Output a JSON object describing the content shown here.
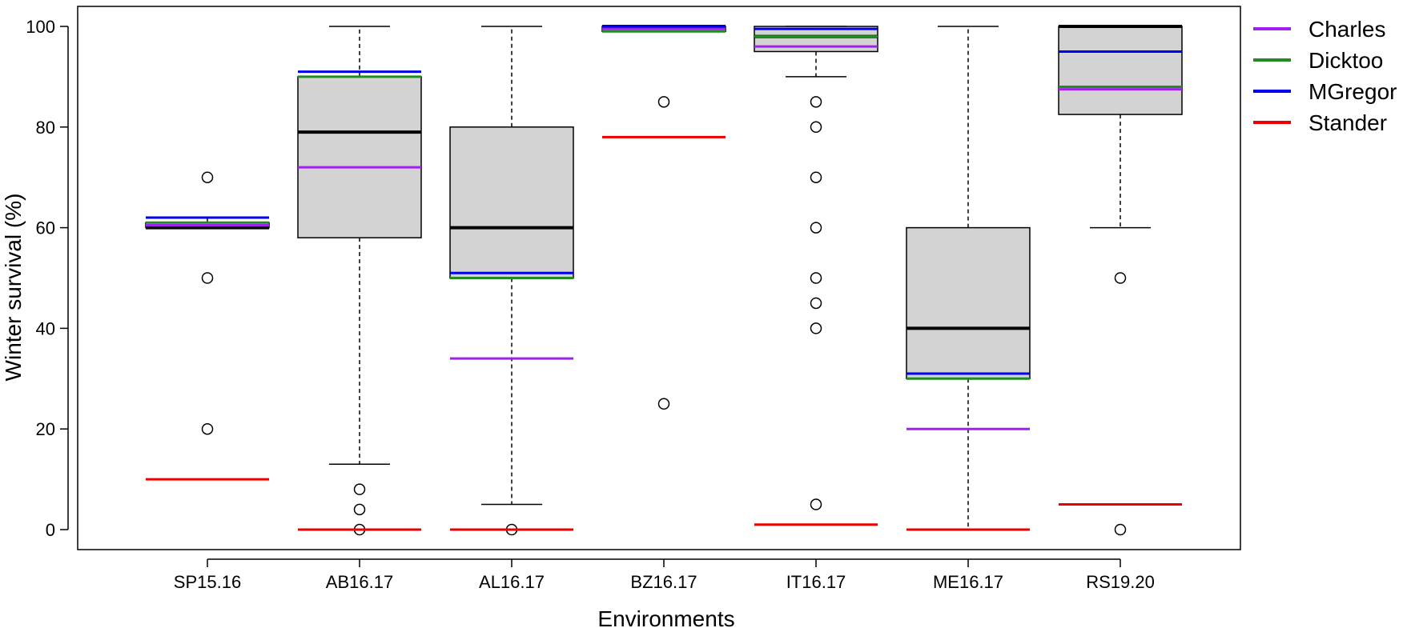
{
  "chart_data": {
    "type": "boxplot",
    "title": "",
    "xlabel": "Environments",
    "ylabel": "Winter survival (%)",
    "ylim": [
      -4,
      104
    ],
    "yticks": [
      0,
      20,
      40,
      60,
      80,
      100
    ],
    "grid": false,
    "legend_position": "top-right (outside plot)",
    "colors": {
      "box_fill": "#d3d3d3",
      "box_stroke": "#000000",
      "median": "#000000",
      "Charles": "#a020f0",
      "Dicktoo": "#228b22",
      "MGregor": "#0000ee",
      "Stander": "#ee0000"
    },
    "categories": [
      "SP15.16",
      "AB16.17",
      "AL16.17",
      "BZ16.17",
      "IT16.17",
      "ME16.17",
      "RS19.20"
    ],
    "boxes": [
      {
        "category": "SP15.16",
        "whisker_low": 60,
        "q1": 60,
        "median": 60,
        "q3": 61,
        "whisker_high": 62,
        "outliers": [
          70,
          50,
          20
        ]
      },
      {
        "category": "AB16.17",
        "whisker_low": 13,
        "q1": 58,
        "median": 79,
        "q3": 90,
        "whisker_high": 100,
        "outliers": [
          8,
          4,
          0
        ]
      },
      {
        "category": "AL16.17",
        "whisker_low": 5,
        "q1": 50,
        "median": 60,
        "q3": 80,
        "whisker_high": 100,
        "outliers": [
          0
        ]
      },
      {
        "category": "BZ16.17",
        "whisker_low": 99,
        "q1": 99,
        "median": 100,
        "q3": 100,
        "whisker_high": 100,
        "outliers": [
          85,
          25
        ]
      },
      {
        "category": "IT16.17",
        "whisker_low": 90,
        "q1": 95,
        "median": 98,
        "q3": 100,
        "whisker_high": 100,
        "outliers": [
          85,
          80,
          70,
          60,
          50,
          45,
          40,
          5
        ]
      },
      {
        "category": "ME16.17",
        "whisker_low": 0,
        "q1": 30,
        "median": 40,
        "q3": 60,
        "whisker_high": 100,
        "outliers": []
      },
      {
        "category": "RS19.20",
        "whisker_low": 60,
        "q1": 82.5,
        "median": 100,
        "q3": 100,
        "whisker_high": 100,
        "outliers": [
          50,
          0
        ]
      }
    ],
    "series": [
      {
        "name": "Charles",
        "values": [
          60.5,
          72,
          34,
          99.5,
          96,
          20,
          87.5
        ]
      },
      {
        "name": "Dicktoo",
        "values": [
          61,
          90,
          50,
          99,
          98,
          30,
          88
        ]
      },
      {
        "name": "MGregor",
        "values": [
          62,
          91,
          51,
          100,
          99.5,
          31,
          95
        ]
      },
      {
        "name": "Stander",
        "values": [
          10,
          0,
          0,
          78,
          1,
          0,
          5
        ]
      }
    ]
  }
}
